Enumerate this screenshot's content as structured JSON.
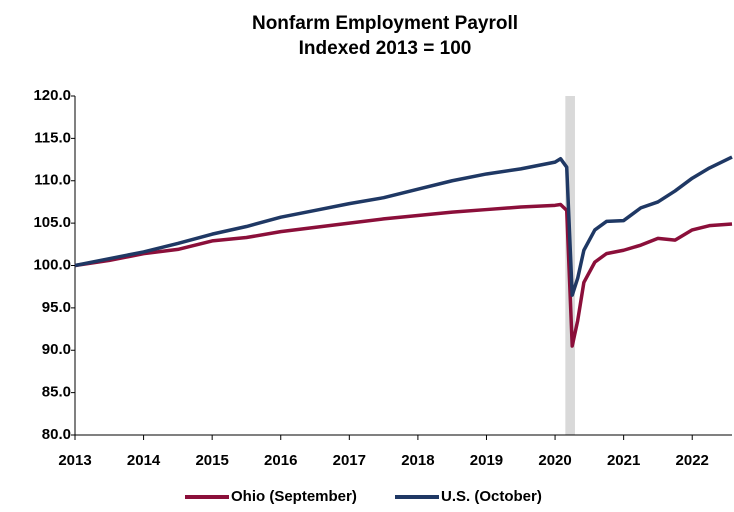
{
  "chart_data": {
    "type": "line",
    "title": "Nonfarm Employment Payroll",
    "subtitle": "Indexed 2013 = 100",
    "x": [
      2013,
      2013.5,
      2014,
      2014.5,
      2015,
      2015.5,
      2016,
      2016.5,
      2017,
      2017.5,
      2018,
      2018.5,
      2019,
      2019.5,
      2020,
      2020.08,
      2020.17,
      2020.25,
      2020.33,
      2020.42,
      2020.58,
      2020.75,
      2021,
      2021.25,
      2021.5,
      2021.75,
      2022,
      2022.25,
      2022.58
    ],
    "series": [
      {
        "name": "Ohio (September)",
        "color": "#8b0f3a",
        "values": [
          100,
          100.6,
          101.4,
          101.9,
          102.9,
          103.3,
          104.0,
          104.5,
          105.0,
          105.5,
          105.9,
          106.3,
          106.6,
          106.9,
          107.1,
          107.2,
          106.5,
          90.5,
          93.5,
          98.0,
          100.4,
          101.4,
          101.8,
          102.4,
          103.2,
          103.0,
          104.2,
          104.7,
          104.9
        ]
      },
      {
        "name": "U.S. (October)",
        "color": "#1f3864",
        "values": [
          100,
          100.8,
          101.6,
          102.6,
          103.7,
          104.6,
          105.7,
          106.5,
          107.3,
          108.0,
          109.0,
          110.0,
          110.8,
          111.4,
          112.2,
          112.6,
          111.6,
          96.5,
          98.5,
          101.8,
          104.2,
          105.2,
          105.3,
          106.8,
          107.5,
          108.8,
          110.3,
          111.5,
          112.8
        ]
      }
    ],
    "recession": [
      2020.15,
      2020.29
    ],
    "xlim": [
      2013,
      2022.58
    ],
    "xticks": [
      2013,
      2014,
      2015,
      2016,
      2017,
      2018,
      2019,
      2020,
      2021,
      2022
    ],
    "ylim": [
      80,
      120
    ],
    "yticks": [
      {
        "value": 80,
        "label": "80.0"
      },
      {
        "value": 85,
        "label": "85.0"
      },
      {
        "value": 90,
        "label": "90.0"
      },
      {
        "value": 95,
        "label": "95.0"
      },
      {
        "value": 100,
        "label": "100.0"
      },
      {
        "value": 105,
        "label": "105.0"
      },
      {
        "value": 110,
        "label": "110.0"
      },
      {
        "value": 115,
        "label": "115.0"
      },
      {
        "value": 120,
        "label": "120.0"
      }
    ],
    "grid": false,
    "legend": "bottom"
  }
}
